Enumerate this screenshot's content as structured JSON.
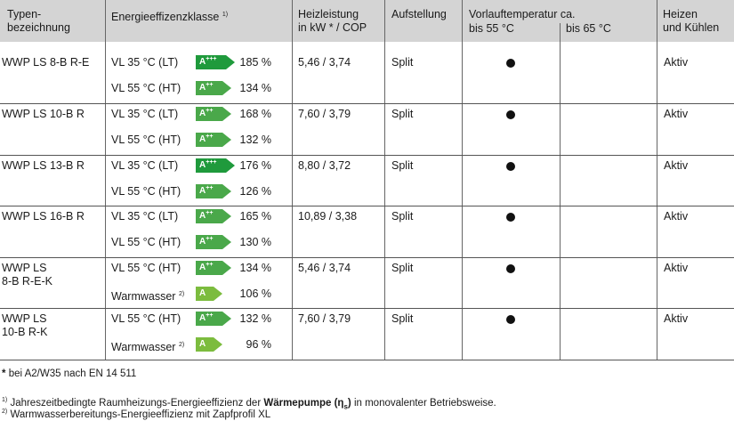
{
  "header": {
    "type": "Typen-\nbezeichnung",
    "type_l1": "Typen-",
    "type_l2": "bezeichnung",
    "energy_class": "Energieeffizenzklasse",
    "energy_sup": "1)",
    "heat_l1": "Heizleistung",
    "heat_l2": "in kW * / COP",
    "install": "Aufstellung",
    "flow_temp": "Vorlauftemperatur ca.",
    "flow_55": "bis 55 °C",
    "flow_65": "bis 65 °C",
    "cool_l1": "Heizen",
    "cool_l2": "und Kühlen"
  },
  "rows": [
    {
      "name_l1": "WWP LS 8-B R-E",
      "name_l2": "",
      "a_label": "VL 35 °C (LT)",
      "a_badge": "A",
      "a_plus": "+++",
      "a_pct": "185 %",
      "b_label": "VL 55 °C (HT)",
      "b_badge": "A",
      "b_plus": "++",
      "b_pct": "134 %",
      "cop": "5,46 / 3,74",
      "install": "Split",
      "cool": "Aktiv"
    },
    {
      "name_l1": "WWP LS 10-B R",
      "name_l2": "",
      "a_label": "VL 35 °C (LT)",
      "a_badge": "A",
      "a_plus": "++",
      "a_pct": "168 %",
      "b_label": "VL 55 °C (HT)",
      "b_badge": "A",
      "b_plus": "++",
      "b_pct": "132 %",
      "cop": "7,60 / 3,79",
      "install": "Split",
      "cool": "Aktiv"
    },
    {
      "name_l1": "WWP LS 13-B R",
      "name_l2": "",
      "a_label": "VL 35 °C (LT)",
      "a_badge": "A",
      "a_plus": "+++",
      "a_pct": "176 %",
      "b_label": "VL 55 °C (HT)",
      "b_badge": "A",
      "b_plus": "++",
      "b_pct": "126 %",
      "cop": "8,80 / 3,72",
      "install": "Split",
      "cool": "Aktiv"
    },
    {
      "name_l1": "WWP LS 16-B R",
      "name_l2": "",
      "a_label": "VL 35 °C (LT)",
      "a_badge": "A",
      "a_plus": "++",
      "a_pct": "165 %",
      "b_label": "VL 55 °C (HT)",
      "b_badge": "A",
      "b_plus": "++",
      "b_pct": "130 %",
      "cop": "10,89 / 3,38",
      "install": "Split",
      "cool": "Aktiv"
    },
    {
      "name_l1": "WWP LS",
      "name_l2": "8-B R-E-K",
      "a_label": "VL 55 °C (HT)",
      "a_badge": "A",
      "a_plus": "++",
      "a_pct": "134 %",
      "b_label": "Warmwasser",
      "b_sup": "2)",
      "b_badge": "A",
      "b_plus": "",
      "b_pct": "106 %",
      "cop": "5,46 / 3,74",
      "install": "Split",
      "cool": "Aktiv"
    },
    {
      "name_l1": "WWP LS",
      "name_l2": "10-B R-K",
      "a_label": "VL 55 °C (HT)",
      "a_badge": "A",
      "a_plus": "++",
      "a_pct": "132 %",
      "b_label": "Warmwasser",
      "b_sup": "2)",
      "b_badge": "A",
      "b_plus": "",
      "b_pct": "96 %",
      "cop": "7,60 / 3,79",
      "install": "Split",
      "cool": "Aktiv"
    }
  ],
  "badge_colors": {
    "A+++": "#1f9a3c",
    "A++": "#4aa84a",
    "A": "#7cbc3e"
  },
  "notes": {
    "star_mark": "*",
    "star": "bei A2/W35 nach EN 14 511",
    "n1_sup": "1)",
    "n1_pre": "Jahreszeitbedingte Raumheizungs-Energieeffizienz der",
    "n1_bold": "Wärmepumpe (η",
    "n1_sub": "s",
    "n1_bold_end": ")",
    "n1_post": "in monovalenter Betriebsweise.",
    "n2_sup": "2)",
    "n2": "Warmwasserbereitungs-Energieeffizienz mit Zapfprofil XL"
  }
}
